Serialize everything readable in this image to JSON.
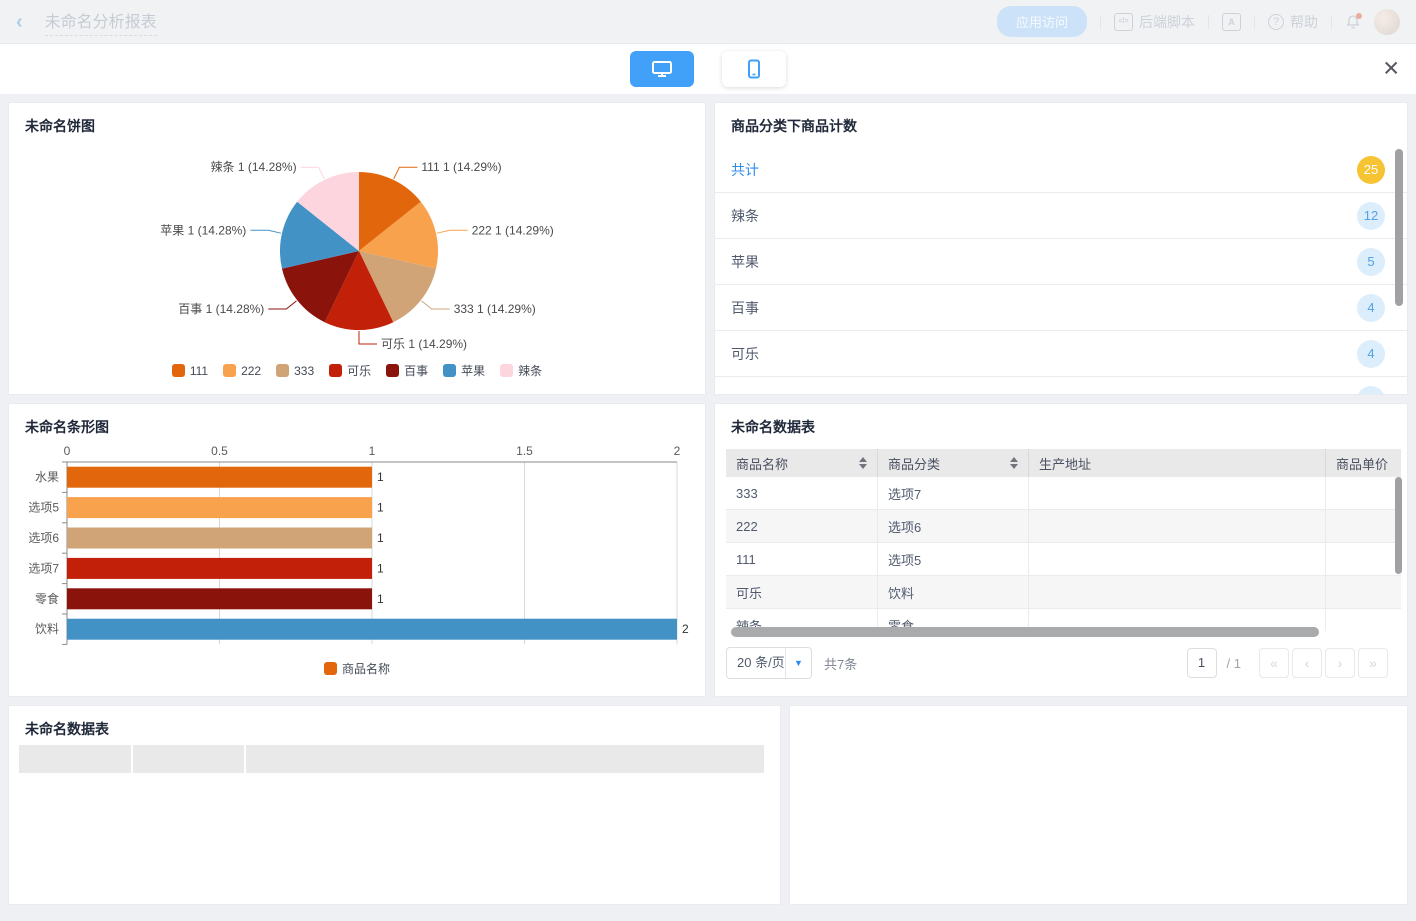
{
  "topbar": {
    "title": "未命名分析报表",
    "app_access": "应用访问",
    "backend_script": "后端脚本",
    "help": "帮助"
  },
  "icons": {
    "back": "‹",
    "close": "✕",
    "code": "</>",
    "dictionary": "A",
    "help": "?",
    "caret_down": "▼",
    "pager": [
      {
        "name": "first-page-icon",
        "glyph": "«"
      },
      {
        "name": "prev-page-icon",
        "glyph": "‹"
      },
      {
        "name": "next-page-icon",
        "glyph": "›"
      },
      {
        "name": "last-page-icon",
        "glyph": "»"
      }
    ]
  },
  "pie_panel": {
    "title": "未命名饼图"
  },
  "counts_panel": {
    "title": "商品分类下商品计数",
    "total_badge_color": "#f6c332",
    "badge_bg": "#dcedfb",
    "badge_text_color": "#51a2e8",
    "rows": [
      {
        "label": "共计",
        "value": "25",
        "emphasis": true
      },
      {
        "label": "辣条",
        "value": "12"
      },
      {
        "label": "苹果",
        "value": "5"
      },
      {
        "label": "百事",
        "value": "4"
      },
      {
        "label": "可乐",
        "value": "4"
      },
      {
        "label": "",
        "value": ""
      }
    ]
  },
  "bar_panel": {
    "title": "未命名条形图",
    "legend": "商品名称"
  },
  "table_panel": {
    "title": "未命名数据表",
    "columns": [
      {
        "label": "商品名称",
        "sortable": true
      },
      {
        "label": "商品分类",
        "sortable": true
      },
      {
        "label": "生产地址",
        "sortable": false
      },
      {
        "label": "商品单价",
        "sortable": false
      }
    ],
    "rows": [
      [
        "333",
        "选项7",
        "",
        ""
      ],
      [
        "222",
        "选项6",
        "",
        ""
      ],
      [
        "111",
        "选项5",
        "",
        ""
      ],
      [
        "可乐",
        "饮料",
        "",
        ""
      ],
      [
        "辣条",
        "零食",
        "",
        ""
      ]
    ],
    "pagination": {
      "page_size": "20 条/页",
      "total": "共7条",
      "page": "1",
      "of": "/ 1"
    }
  },
  "table2_panel": {
    "title": "未命名数据表"
  },
  "chart_data": [
    {
      "type": "pie",
      "title": "未命名饼图",
      "labels": [
        "111",
        "222",
        "333",
        "可乐",
        "百事",
        "苹果",
        "辣条"
      ],
      "values": [
        1,
        1,
        1,
        1,
        1,
        1,
        1
      ],
      "slice_labels": [
        "111 1 (14.29%)",
        "222 1 (14.29%)",
        "333 1 (14.29%)",
        "可乐 1 (14.29%)",
        "百事 1 (14.28%)",
        "苹果 1 (14.28%)",
        "辣条 1 (14.28%)"
      ],
      "colors": [
        "#e2670c",
        "#f9a24e",
        "#d1a477",
        "#c22008",
        "#8a130b",
        "#4392c6",
        "#fcd5df"
      ],
      "legend_position": "bottom"
    },
    {
      "type": "bar",
      "title": "未命名条形图",
      "orientation": "horizontal",
      "categories": [
        "水果",
        "选项5",
        "选项6",
        "选项7",
        "零食",
        "饮料"
      ],
      "values": [
        1,
        1,
        1,
        1,
        1,
        2
      ],
      "colors": [
        "#e2670c",
        "#f9a24e",
        "#d1a477",
        "#c22008",
        "#8a130b",
        "#4392c6"
      ],
      "xlim": [
        0,
        2
      ],
      "ticks": [
        0,
        0.5,
        1,
        1.5,
        2
      ],
      "tick_labels": [
        "0",
        "0.5",
        "1",
        "1.5",
        "2"
      ],
      "grid": true,
      "legend": "商品名称",
      "legend_color": "#e2670c",
      "legend_position": "bottom"
    }
  ]
}
